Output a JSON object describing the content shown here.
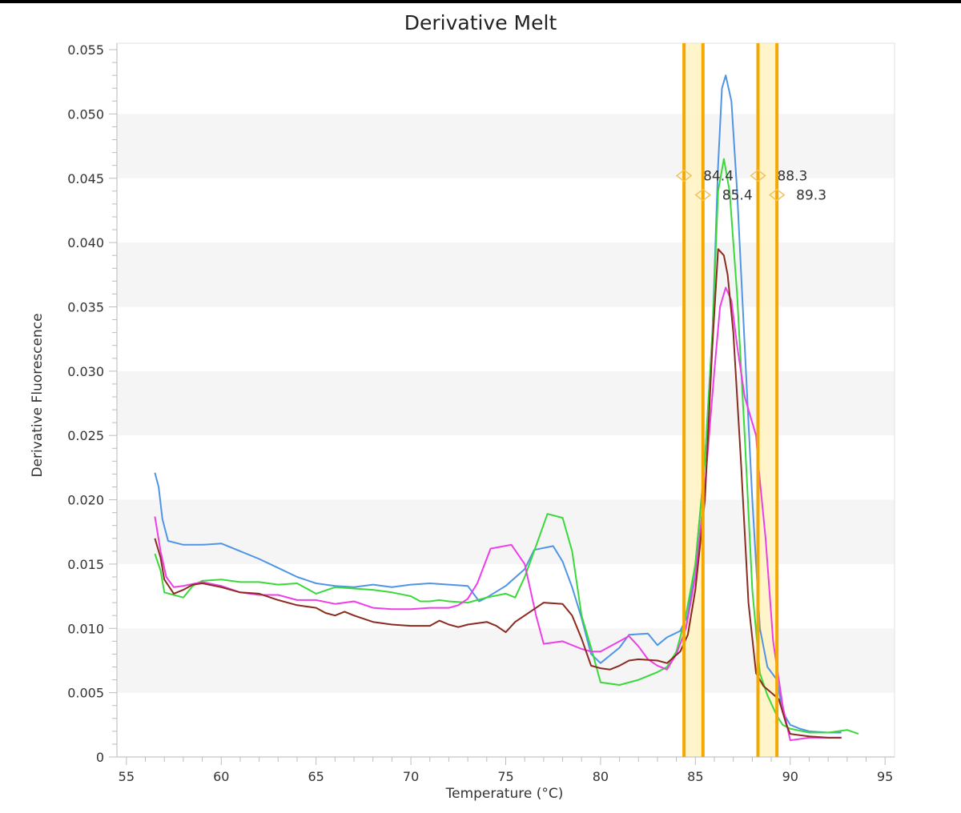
{
  "chart_data": {
    "type": "line",
    "title": "Derivative Melt",
    "xlabel": "Temperature (°C)",
    "ylabel": "Derivative Fluorescence",
    "xlim": [
      54.5,
      95.5
    ],
    "ylim": [
      0,
      0.0555
    ],
    "x_ticks": [
      55,
      60,
      65,
      70,
      75,
      80,
      85,
      90,
      95
    ],
    "x_tick_labels": [
      "55",
      "60",
      "65",
      "70",
      "75",
      "80",
      "85",
      "90",
      "95"
    ],
    "y_ticks": [
      0,
      0.005,
      0.01,
      0.015,
      0.02,
      0.025,
      0.03,
      0.035,
      0.04,
      0.045,
      0.05,
      0.055
    ],
    "y_tick_labels": [
      "0",
      "0.005",
      "0.010",
      "0.015",
      "0.020",
      "0.025",
      "0.030",
      "0.035",
      "0.040",
      "0.045",
      "0.050",
      "0.055"
    ],
    "grid": "alternating horizontal bands",
    "legend": "none",
    "colors": {
      "band": "#f5f5f5",
      "axis": "#cfcfcf",
      "marker": "#f5a800",
      "marker_fill": "#fff3c4"
    },
    "series": [
      {
        "color": "#4f95e6",
        "points": [
          [
            56.5,
            0.0221
          ],
          [
            56.7,
            0.021
          ],
          [
            56.9,
            0.0185
          ],
          [
            57.2,
            0.0168
          ],
          [
            58,
            0.0165
          ],
          [
            59,
            0.0165
          ],
          [
            60,
            0.0166
          ],
          [
            61,
            0.016
          ],
          [
            62,
            0.0154
          ],
          [
            63,
            0.0147
          ],
          [
            64,
            0.014
          ],
          [
            65,
            0.0135
          ],
          [
            66,
            0.0133
          ],
          [
            67,
            0.0132
          ],
          [
            68,
            0.0134
          ],
          [
            69,
            0.0132
          ],
          [
            70,
            0.0134
          ],
          [
            71,
            0.0135
          ],
          [
            72,
            0.0134
          ],
          [
            73,
            0.0133
          ],
          [
            73.6,
            0.0121
          ],
          [
            74,
            0.0124
          ],
          [
            75,
            0.0133
          ],
          [
            76,
            0.0146
          ],
          [
            76.5,
            0.0161
          ],
          [
            77.5,
            0.0164
          ],
          [
            78,
            0.0152
          ],
          [
            78.5,
            0.0132
          ],
          [
            79,
            0.0108
          ],
          [
            79.5,
            0.008
          ],
          [
            80,
            0.0073
          ],
          [
            80.5,
            0.0079
          ],
          [
            81,
            0.0085
          ],
          [
            81.5,
            0.0095
          ],
          [
            82.5,
            0.0096
          ],
          [
            83,
            0.0087
          ],
          [
            83.5,
            0.0093
          ],
          [
            84.2,
            0.0098
          ],
          [
            84.6,
            0.011
          ],
          [
            85,
            0.015
          ],
          [
            85.5,
            0.023
          ],
          [
            85.9,
            0.033
          ],
          [
            86.2,
            0.046
          ],
          [
            86.4,
            0.052
          ],
          [
            86.6,
            0.053
          ],
          [
            86.9,
            0.051
          ],
          [
            87.2,
            0.044
          ],
          [
            87.5,
            0.035
          ],
          [
            88,
            0.02
          ],
          [
            88.4,
            0.01
          ],
          [
            88.8,
            0.007
          ],
          [
            89.3,
            0.006
          ],
          [
            89.6,
            0.0035
          ],
          [
            90,
            0.0025
          ],
          [
            90.5,
            0.0022
          ],
          [
            91,
            0.002
          ],
          [
            92,
            0.0019
          ],
          [
            92.7,
            0.0019
          ]
        ]
      },
      {
        "color": "#3ad93a",
        "points": [
          [
            56.5,
            0.0158
          ],
          [
            56.8,
            0.0145
          ],
          [
            57,
            0.0128
          ],
          [
            57.5,
            0.0126
          ],
          [
            58,
            0.0124
          ],
          [
            58.5,
            0.0133
          ],
          [
            59,
            0.0137
          ],
          [
            60,
            0.0138
          ],
          [
            61,
            0.0136
          ],
          [
            62,
            0.0136
          ],
          [
            63,
            0.0134
          ],
          [
            64,
            0.0135
          ],
          [
            65,
            0.0127
          ],
          [
            66,
            0.0132
          ],
          [
            67,
            0.0131
          ],
          [
            68,
            0.013
          ],
          [
            69,
            0.0128
          ],
          [
            70,
            0.0125
          ],
          [
            70.5,
            0.0121
          ],
          [
            71,
            0.0121
          ],
          [
            71.5,
            0.0122
          ],
          [
            72,
            0.0121
          ],
          [
            73,
            0.012
          ],
          [
            74,
            0.0124
          ],
          [
            75,
            0.0127
          ],
          [
            75.5,
            0.0124
          ],
          [
            76,
            0.014
          ],
          [
            76.5,
            0.016
          ],
          [
            77.2,
            0.0189
          ],
          [
            78,
            0.0186
          ],
          [
            78.5,
            0.016
          ],
          [
            79,
            0.011
          ],
          [
            79.5,
            0.0085
          ],
          [
            80,
            0.0058
          ],
          [
            81,
            0.0056
          ],
          [
            82,
            0.006
          ],
          [
            83,
            0.0066
          ],
          [
            83.5,
            0.007
          ],
          [
            84,
            0.0082
          ],
          [
            84.5,
            0.011
          ],
          [
            85,
            0.015
          ],
          [
            85.5,
            0.023
          ],
          [
            85.9,
            0.033
          ],
          [
            86.2,
            0.044
          ],
          [
            86.5,
            0.0465
          ],
          [
            86.8,
            0.044
          ],
          [
            87.2,
            0.036
          ],
          [
            87.6,
            0.025
          ],
          [
            88,
            0.013
          ],
          [
            88.4,
            0.0065
          ],
          [
            88.8,
            0.0048
          ],
          [
            89.3,
            0.0032
          ],
          [
            89.6,
            0.0025
          ],
          [
            90,
            0.0022
          ],
          [
            91,
            0.0019
          ],
          [
            92,
            0.0019
          ],
          [
            93,
            0.0021
          ],
          [
            93.6,
            0.0018
          ]
        ]
      },
      {
        "color": "#ee3ee8",
        "points": [
          [
            56.5,
            0.0187
          ],
          [
            56.8,
            0.016
          ],
          [
            57.1,
            0.014
          ],
          [
            57.5,
            0.0132
          ],
          [
            58,
            0.0133
          ],
          [
            59,
            0.0136
          ],
          [
            60,
            0.0133
          ],
          [
            61,
            0.0128
          ],
          [
            62,
            0.0126
          ],
          [
            63,
            0.0126
          ],
          [
            64,
            0.0122
          ],
          [
            65,
            0.0122
          ],
          [
            66,
            0.0119
          ],
          [
            67,
            0.0121
          ],
          [
            68,
            0.0116
          ],
          [
            69,
            0.0115
          ],
          [
            70,
            0.0115
          ],
          [
            71,
            0.0116
          ],
          [
            72,
            0.0116
          ],
          [
            72.5,
            0.0118
          ],
          [
            73,
            0.0123
          ],
          [
            73.5,
            0.0135
          ],
          [
            74.2,
            0.0162
          ],
          [
            75.3,
            0.0165
          ],
          [
            76,
            0.015
          ],
          [
            76.6,
            0.011
          ],
          [
            77,
            0.0088
          ],
          [
            78,
            0.009
          ],
          [
            79,
            0.0084
          ],
          [
            79.5,
            0.0082
          ],
          [
            80,
            0.0082
          ],
          [
            81,
            0.009
          ],
          [
            81.5,
            0.0094
          ],
          [
            82,
            0.0086
          ],
          [
            82.5,
            0.0076
          ],
          [
            83,
            0.0071
          ],
          [
            83.5,
            0.0068
          ],
          [
            84,
            0.008
          ],
          [
            84.5,
            0.01
          ],
          [
            85,
            0.014
          ],
          [
            85.5,
            0.021
          ],
          [
            86,
            0.03
          ],
          [
            86.3,
            0.035
          ],
          [
            86.6,
            0.0365
          ],
          [
            86.9,
            0.0355
          ],
          [
            87.2,
            0.032
          ],
          [
            87.6,
            0.028
          ],
          [
            88.2,
            0.025
          ],
          [
            88.3,
            0.023
          ],
          [
            88.7,
            0.017
          ],
          [
            89.1,
            0.009
          ],
          [
            89.6,
            0.004
          ],
          [
            90,
            0.0013
          ],
          [
            90.5,
            0.0014
          ],
          [
            91,
            0.0015
          ],
          [
            92,
            0.0015
          ],
          [
            92.7,
            0.0015
          ]
        ]
      },
      {
        "color": "#8b2a1f",
        "points": [
          [
            56.5,
            0.017
          ],
          [
            56.8,
            0.0155
          ],
          [
            57,
            0.0138
          ],
          [
            57.5,
            0.0127
          ],
          [
            58,
            0.013
          ],
          [
            58.5,
            0.0134
          ],
          [
            59,
            0.0135
          ],
          [
            60,
            0.0132
          ],
          [
            61,
            0.0128
          ],
          [
            62,
            0.0127
          ],
          [
            63,
            0.0122
          ],
          [
            64,
            0.0118
          ],
          [
            65,
            0.0116
          ],
          [
            65.5,
            0.0112
          ],
          [
            66,
            0.011
          ],
          [
            66.5,
            0.0113
          ],
          [
            67,
            0.011
          ],
          [
            68,
            0.0105
          ],
          [
            69,
            0.0103
          ],
          [
            70,
            0.0102
          ],
          [
            71,
            0.0102
          ],
          [
            71.5,
            0.0106
          ],
          [
            72,
            0.0103
          ],
          [
            72.5,
            0.0101
          ],
          [
            73,
            0.0103
          ],
          [
            73.5,
            0.0104
          ],
          [
            74,
            0.0105
          ],
          [
            74.5,
            0.0102
          ],
          [
            75,
            0.0097
          ],
          [
            75.5,
            0.0105
          ],
          [
            76,
            0.011
          ],
          [
            77,
            0.012
          ],
          [
            78,
            0.0119
          ],
          [
            78.5,
            0.011
          ],
          [
            79,
            0.0092
          ],
          [
            79.5,
            0.0071
          ],
          [
            80,
            0.0069
          ],
          [
            80.5,
            0.0068
          ],
          [
            81,
            0.0071
          ],
          [
            81.5,
            0.0075
          ],
          [
            82,
            0.0076
          ],
          [
            83,
            0.0075
          ],
          [
            83.5,
            0.0073
          ],
          [
            84.2,
            0.0082
          ],
          [
            84.6,
            0.0095
          ],
          [
            85,
            0.013
          ],
          [
            85.5,
            0.02
          ],
          [
            85.9,
            0.032
          ],
          [
            86.2,
            0.0395
          ],
          [
            86.5,
            0.039
          ],
          [
            86.7,
            0.0375
          ],
          [
            87,
            0.033
          ],
          [
            87.4,
            0.023
          ],
          [
            87.8,
            0.012
          ],
          [
            88.2,
            0.0065
          ],
          [
            88.6,
            0.0055
          ],
          [
            89,
            0.005
          ],
          [
            89.4,
            0.0045
          ],
          [
            89.8,
            0.0025
          ],
          [
            90,
            0.0018
          ],
          [
            90.5,
            0.0017
          ],
          [
            91,
            0.0016
          ],
          [
            92,
            0.0015
          ],
          [
            92.7,
            0.0015
          ]
        ]
      }
    ],
    "markers": [
      {
        "x": 84.4,
        "label": "84.4",
        "label_y": 0.0452
      },
      {
        "x": 85.4,
        "label": "85.4",
        "label_y": 0.0437
      },
      {
        "x": 88.3,
        "label": "88.3",
        "label_y": 0.0452
      },
      {
        "x": 89.3,
        "label": "89.3",
        "label_y": 0.0437
      }
    ],
    "marker_regions": [
      [
        84.4,
        85.4
      ],
      [
        88.3,
        89.3
      ]
    ]
  }
}
